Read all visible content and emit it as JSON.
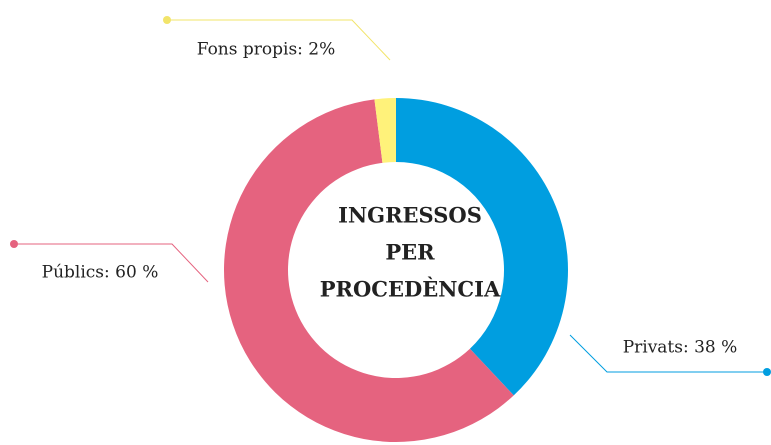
{
  "chart_data": {
    "type": "donut",
    "title": [
      "INGRESSOS",
      "PER",
      "PROCEDÈNCIA"
    ],
    "values": [
      38,
      60,
      2
    ],
    "value_labels": [
      "Privats: 38 %",
      "Públics: 60 %",
      "Fons propis: 2%"
    ],
    "colors": [
      "#009ee0",
      "#e5637f",
      "#fff27a"
    ]
  }
}
